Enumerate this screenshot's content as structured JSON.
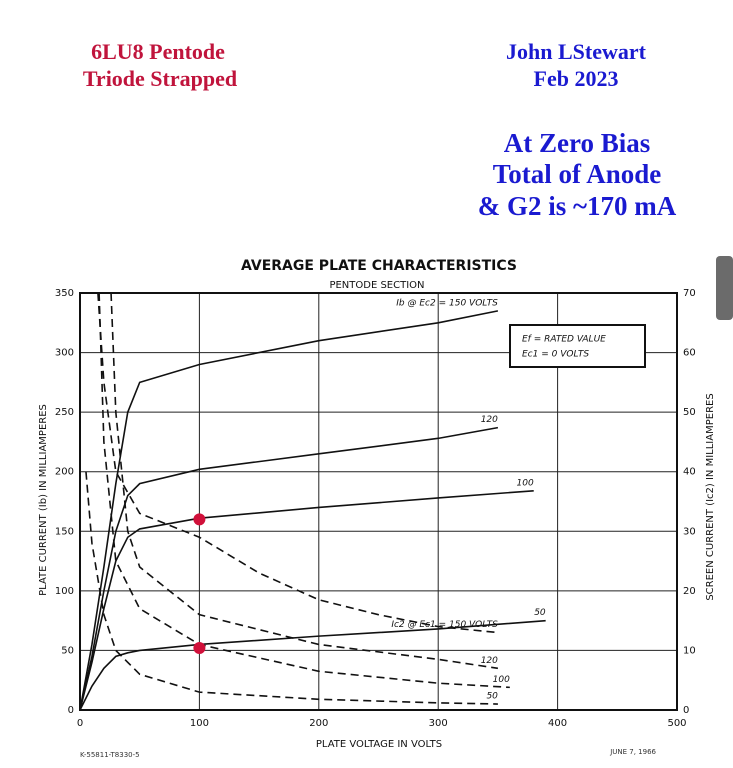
{
  "header": {
    "left": [
      "6LU8 Pentode",
      "Triode Strapped"
    ],
    "right": [
      "John LStewart",
      "Feb 2023"
    ],
    "note": [
      "At Zero Bias",
      "Total of Anode",
      "& G2 is ~170 mA"
    ]
  },
  "chart_data": {
    "type": "line",
    "title": "AVERAGE PLATE CHARACTERISTICS",
    "subtitle": "PENTODE SECTION",
    "x_label": "PLATE VOLTAGE IN VOLTS",
    "y_label": "PLATE CURRENT (Ib) IN MILLIAMPERES",
    "y2_label": "SCREEN CURRENT (Ic2) IN MILLIAMPERES",
    "xlim": [
      0,
      500
    ],
    "xticks": [
      0,
      100,
      200,
      300,
      400,
      500
    ],
    "ylim": [
      0,
      350
    ],
    "yticks": [
      0,
      50,
      100,
      150,
      200,
      250,
      300,
      350
    ],
    "y2lim": [
      0,
      70
    ],
    "y2ticks": [
      0,
      10,
      20,
      30,
      40,
      50,
      60,
      70
    ],
    "grid": true,
    "legend_box": [
      "Ef = RATED VALUE",
      "Ec1 = 0 VOLTS"
    ],
    "footer_left": "K-55811-T8330-5",
    "footer_right": "JUNE 7, 1966",
    "series": [
      {
        "name": "Ib @ Ec2 = 150 VOLTS",
        "color": "#111111",
        "dash": false,
        "x": [
          0,
          10,
          20,
          30,
          40,
          50,
          100,
          200,
          300,
          350
        ],
        "values": [
          0,
          55,
          120,
          190,
          250,
          275,
          290,
          310,
          325,
          335
        ]
      },
      {
        "name": "120",
        "color": "#111111",
        "dash": false,
        "x": [
          0,
          10,
          20,
          30,
          40,
          50,
          100,
          200,
          300,
          350
        ],
        "values": [
          0,
          45,
          100,
          150,
          180,
          190,
          202,
          215,
          228,
          237
        ]
      },
      {
        "name": "100",
        "color": "#111111",
        "dash": false,
        "x": [
          0,
          10,
          20,
          30,
          40,
          50,
          100,
          200,
          300,
          380
        ],
        "values": [
          0,
          40,
          85,
          125,
          145,
          152,
          161,
          170,
          178,
          184
        ]
      },
      {
        "name": "50",
        "color": "#111111",
        "dash": false,
        "x": [
          0,
          10,
          20,
          30,
          40,
          50,
          100,
          200,
          300,
          390
        ],
        "values": [
          0,
          20,
          35,
          45,
          48,
          50,
          55,
          62,
          68,
          75
        ]
      },
      {
        "name": "Ic2 @ Ec1 = 150 VOLTS",
        "color": "#111111",
        "dash": true,
        "axis": "y2",
        "x": [
          15,
          20,
          30,
          50,
          100,
          150,
          200,
          250,
          300,
          350
        ],
        "values": [
          70,
          55,
          40,
          33,
          29,
          23,
          18.5,
          16,
          14,
          13
        ]
      },
      {
        "name": "120",
        "color": "#111111",
        "dash": true,
        "axis": "y2",
        "x": [
          26,
          30,
          40,
          50,
          100,
          200,
          300,
          350
        ],
        "values": [
          70,
          50,
          30,
          24,
          16,
          11,
          8.5,
          7
        ]
      },
      {
        "name": "100",
        "color": "#111111",
        "dash": true,
        "axis": "y2",
        "x": [
          16,
          20,
          30,
          50,
          100,
          200,
          300,
          360
        ],
        "values": [
          70,
          45,
          25,
          17,
          11,
          6.5,
          4.5,
          3.8
        ]
      },
      {
        "name": "50",
        "color": "#111111",
        "dash": true,
        "axis": "y2",
        "x": [
          5,
          10,
          20,
          30,
          50,
          100,
          200,
          300,
          350
        ],
        "values": [
          40,
          28,
          16,
          10,
          6,
          3,
          1.8,
          1.2,
          1
        ]
      }
    ],
    "markers": {
      "x": [
        100,
        100
      ],
      "values": [
        160,
        52
      ],
      "color": "#d0103a"
    }
  }
}
